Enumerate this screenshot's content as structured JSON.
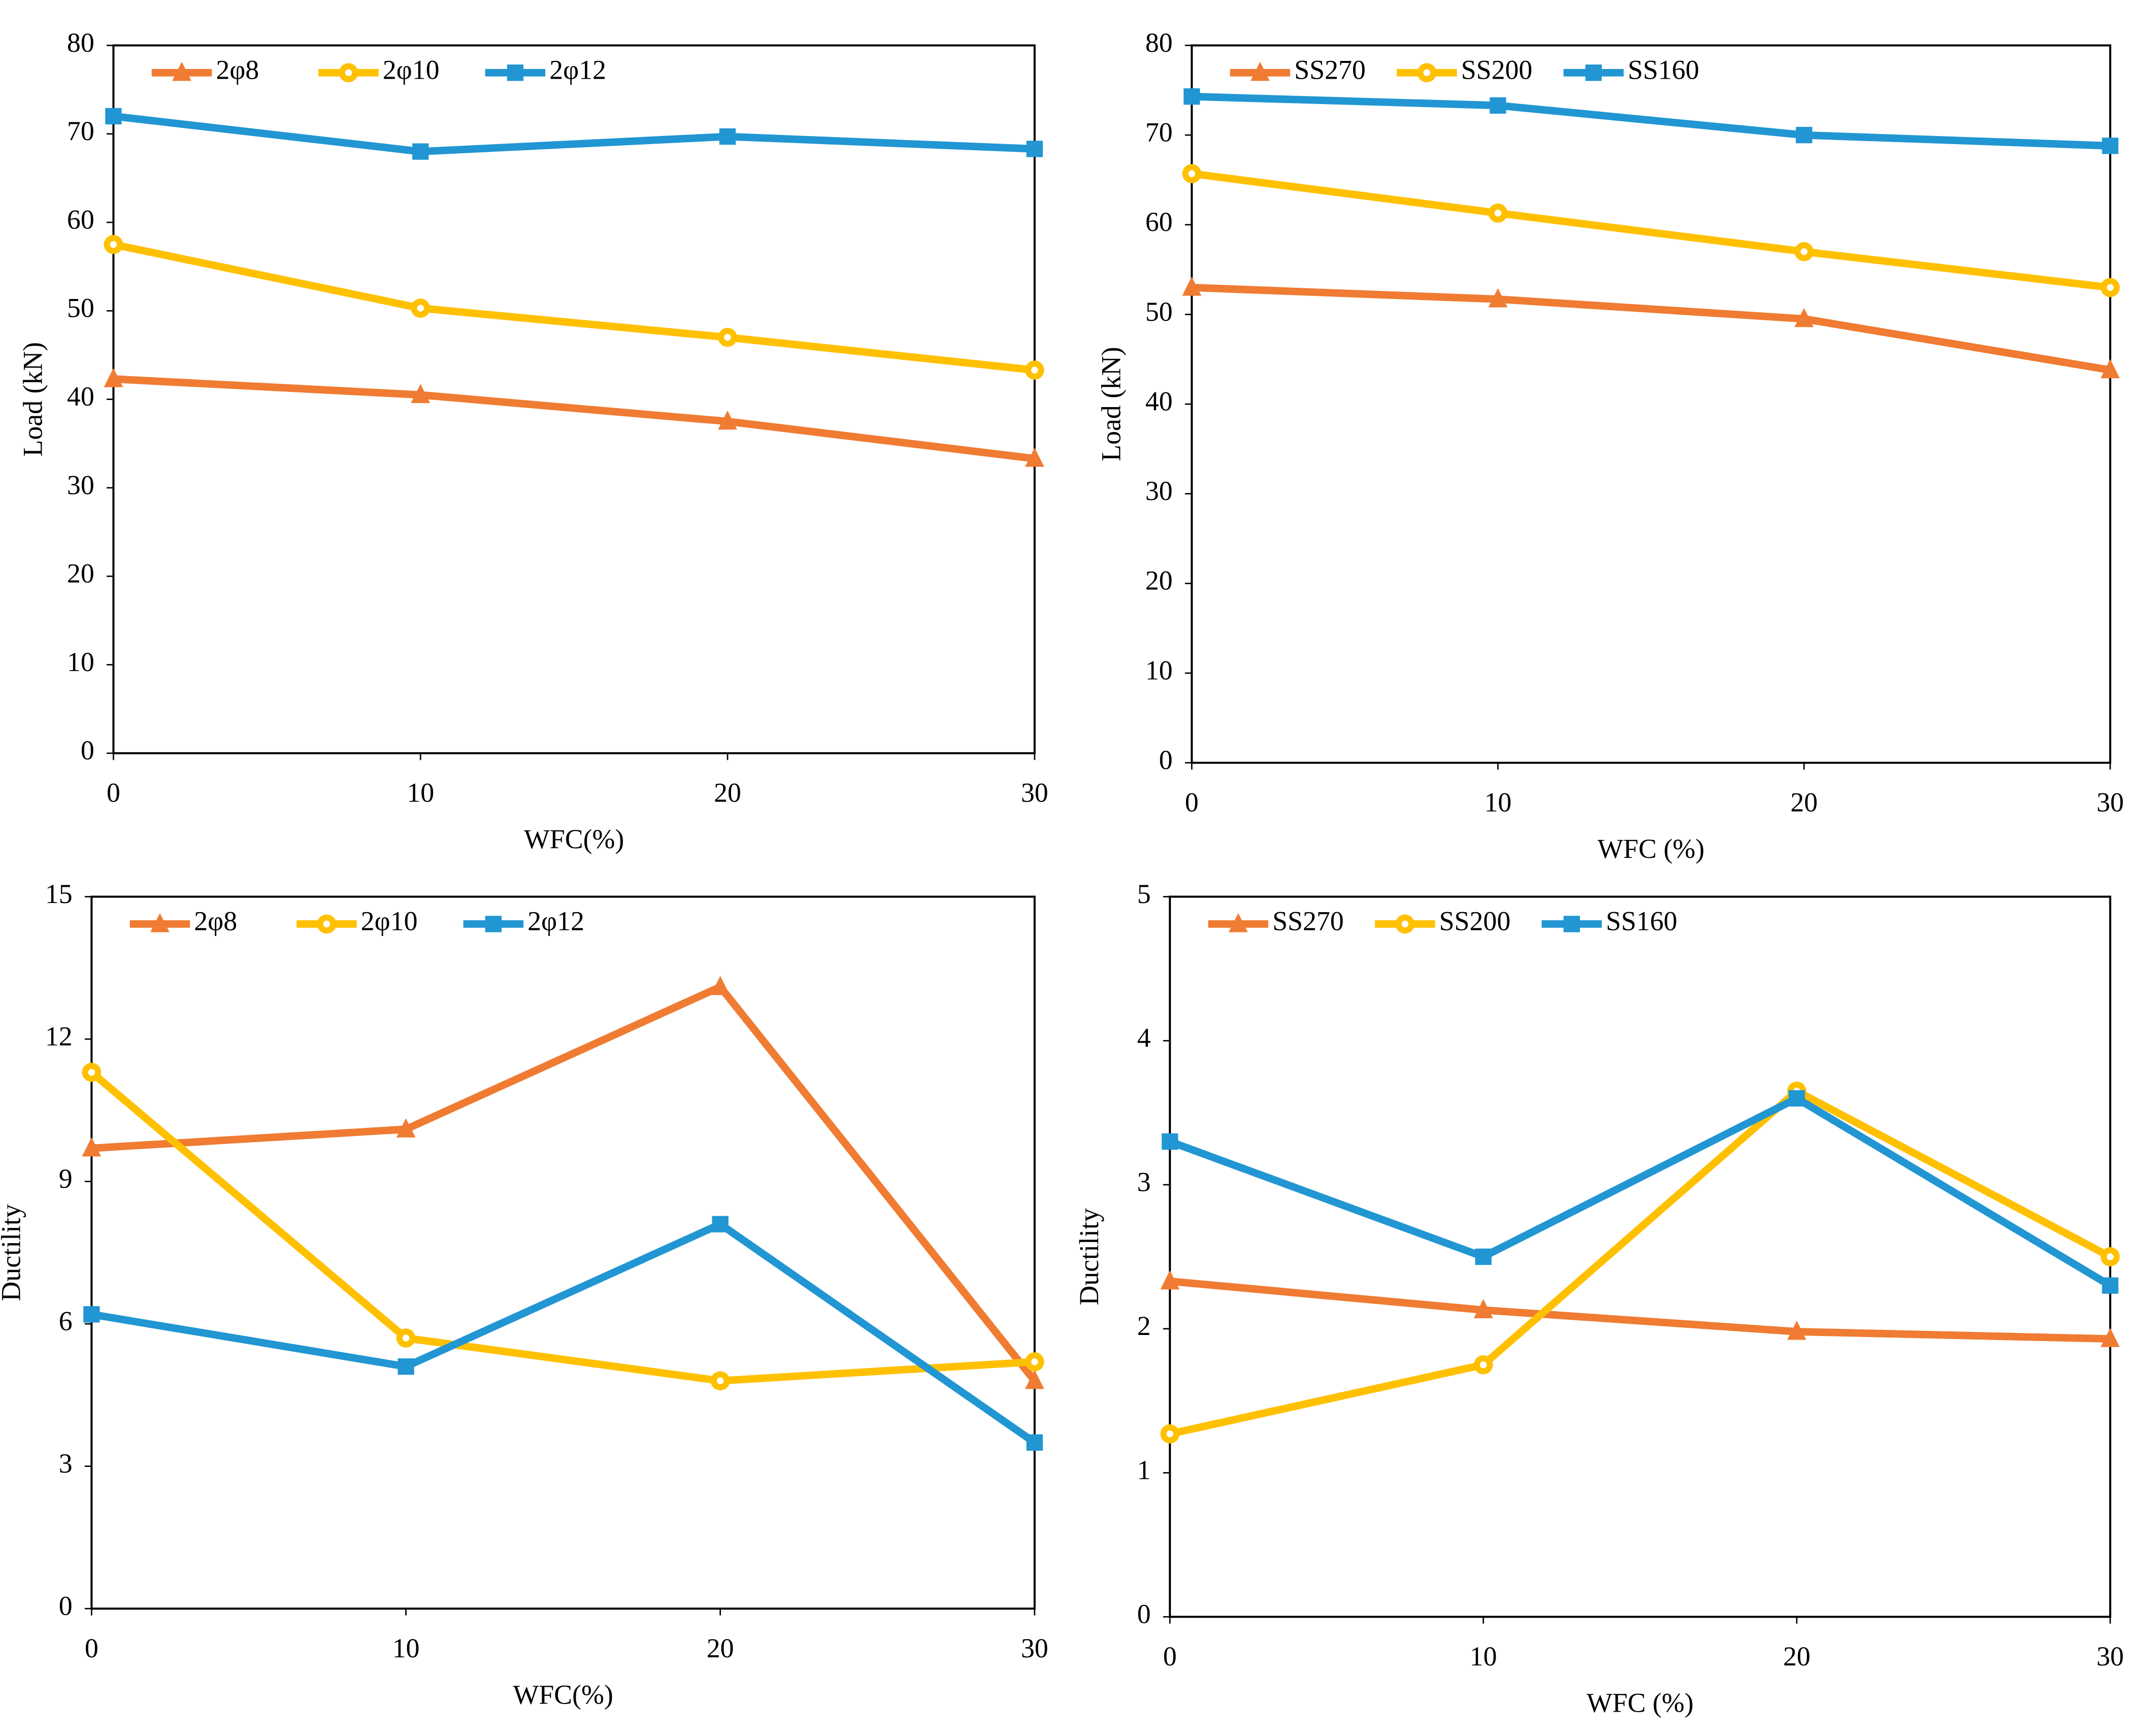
{
  "chart_data": [
    {
      "type": "line",
      "xlabel": "WFC(%)",
      "ylabel": "Load (kN)",
      "x": [
        0,
        10,
        20,
        30
      ],
      "xlim": [
        0,
        30
      ],
      "xticks": [
        0,
        10,
        20,
        30
      ],
      "ylim": [
        0,
        80
      ],
      "yticks": [
        0,
        10,
        20,
        30,
        40,
        50,
        60,
        70,
        80
      ],
      "series": [
        {
          "name": "2φ8",
          "color": "#F07B32",
          "marker": "triangle",
          "values": [
            42.3,
            40.5,
            37.5,
            33.3
          ]
        },
        {
          "name": "2φ10",
          "color": "#FFC000",
          "marker": "circle",
          "values": [
            57.5,
            50.3,
            47.0,
            43.3
          ]
        },
        {
          "name": "2φ12",
          "color": "#2196D3",
          "marker": "square",
          "values": [
            72.0,
            68.0,
            69.7,
            68.3
          ]
        }
      ]
    },
    {
      "type": "line",
      "xlabel": "WFC (%)",
      "ylabel": "Load (kN)",
      "x": [
        0,
        10,
        20,
        30
      ],
      "xlim": [
        0,
        30
      ],
      "xticks": [
        0,
        10,
        20,
        30
      ],
      "ylim": [
        0,
        80
      ],
      "yticks": [
        0,
        10,
        20,
        30,
        40,
        50,
        60,
        70,
        80
      ],
      "series": [
        {
          "name": "SS270",
          "color": "#F07B32",
          "marker": "triangle",
          "values": [
            53.0,
            51.7,
            49.5,
            43.8
          ]
        },
        {
          "name": "SS200",
          "color": "#FFC000",
          "marker": "circle",
          "values": [
            65.7,
            61.3,
            57.0,
            53.0
          ]
        },
        {
          "name": "SS160",
          "color": "#2196D3",
          "marker": "square",
          "values": [
            74.3,
            73.3,
            70.0,
            68.8
          ]
        }
      ]
    },
    {
      "type": "line",
      "xlabel": "WFC(%)",
      "ylabel": "Ductility",
      "x": [
        0,
        10,
        20,
        30
      ],
      "xlim": [
        0,
        30
      ],
      "xticks": [
        0,
        10,
        20,
        30
      ],
      "ylim": [
        0,
        15
      ],
      "yticks": [
        0,
        3,
        6,
        9,
        12,
        15
      ],
      "series": [
        {
          "name": "2φ8",
          "color": "#F07B32",
          "marker": "triangle",
          "values": [
            9.7,
            10.1,
            13.1,
            4.8
          ]
        },
        {
          "name": "2φ10",
          "color": "#FFC000",
          "marker": "circle",
          "values": [
            11.3,
            5.7,
            4.8,
            5.2
          ]
        },
        {
          "name": "2φ12",
          "color": "#2196D3",
          "marker": "square",
          "values": [
            6.2,
            5.1,
            8.1,
            3.5
          ]
        }
      ]
    },
    {
      "type": "line",
      "xlabel": "WFC (%)",
      "ylabel": "Ductility",
      "x": [
        0,
        10,
        20,
        30
      ],
      "xlim": [
        0,
        30
      ],
      "xticks": [
        0,
        10,
        20,
        30
      ],
      "ylim": [
        0,
        5
      ],
      "yticks": [
        0,
        1,
        2,
        3,
        4,
        5
      ],
      "series": [
        {
          "name": "SS270",
          "color": "#F07B32",
          "marker": "triangle",
          "values": [
            2.33,
            2.13,
            1.98,
            1.93
          ]
        },
        {
          "name": "SS200",
          "color": "#FFC000",
          "marker": "circle",
          "values": [
            1.27,
            1.75,
            3.65,
            2.5
          ]
        },
        {
          "name": "SS160",
          "color": "#2196D3",
          "marker": "square",
          "values": [
            3.3,
            2.5,
            3.6,
            2.3
          ]
        }
      ]
    }
  ]
}
